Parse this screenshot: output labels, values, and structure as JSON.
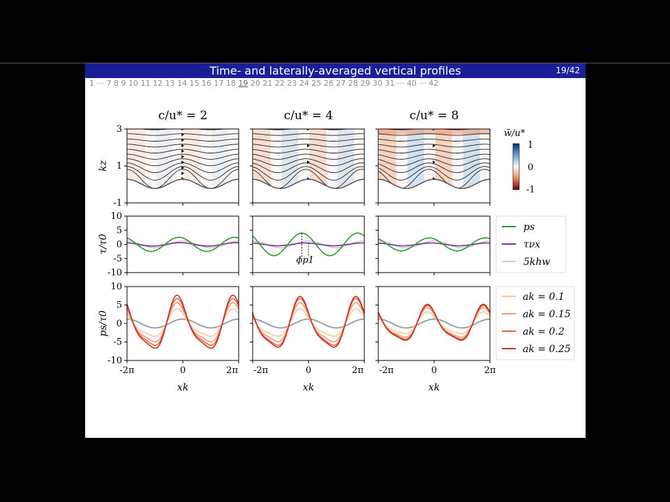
{
  "slide": {
    "title": "Time- and laterally-averaged vertical profiles",
    "page": "19/42",
    "nav": {
      "before": "1 ··· 7 8 9 10 11 12 13 14 15 16 17 18",
      "current": "19",
      "after": "20 21 22 23 24 25 26 27 28 29 30 31 ··· 40 ··· 42"
    }
  },
  "figure": {
    "column_titles": [
      "c/u* = 2",
      "c/u* = 4",
      "c/u* = 8"
    ],
    "colorbar": {
      "label": "w̄/u*",
      "ticks": [
        "1",
        "0",
        "-1"
      ],
      "colors": [
        "#08306b",
        "#ffffff",
        "#67000d"
      ]
    },
    "annotation": "ϕp1",
    "x_ticks": [
      "-2π",
      "0",
      "2π"
    ],
    "xlabel": "xk"
  },
  "chart_data": [
    {
      "type": "heatmap",
      "row": "streamlines",
      "ylabel": "kz",
      "y_ticks": [
        "3",
        "1",
        "-1"
      ],
      "ylim": [
        -1,
        3
      ],
      "xlim": [
        -6.283,
        6.283
      ],
      "panels": [
        "c/u* = 2",
        "c/u* = 4",
        "c/u* = 8"
      ],
      "wave_amplitude": 0.25
    },
    {
      "type": "line",
      "row": "stress",
      "ylabel": "τ/τ0",
      "y_ticks": [
        "10",
        "5",
        "0",
        "-5",
        "-10"
      ],
      "ylim": [
        -10,
        10
      ],
      "xlim": [
        -6.283,
        6.283
      ],
      "series": [
        {
          "name": "p_s",
          "label": "ps",
          "color": "#2e9a2e",
          "amplitude": [
            2.5,
            4.0,
            2.3
          ],
          "phase": [
            -0.45,
            -0.75,
            -0.55
          ]
        },
        {
          "name": "tau_vx",
          "label": "τνx",
          "color": "#7b2a8e",
          "amplitude": [
            0.6,
            0.5,
            0.5
          ],
          "phase": [
            -0.3,
            -0.3,
            -0.3
          ]
        },
        {
          "name": "5kh_w",
          "label": "5khw",
          "color": "#c8c8c8",
          "amplitude": [
            1.2,
            1.2,
            1.2
          ],
          "phase": [
            0,
            0,
            0
          ]
        }
      ]
    },
    {
      "type": "line",
      "row": "pressure",
      "ylabel": "ps/τ0",
      "y_ticks": [
        "10",
        "5",
        "0",
        "-5",
        "-10"
      ],
      "ylim": [
        -10,
        10
      ],
      "xlim": [
        -6.283,
        6.283
      ],
      "reference": {
        "color": "#999999",
        "amplitude": 1.2
      },
      "series": [
        {
          "name": "ak=0.1",
          "label": "ak = 0.1",
          "color": "#f6c79c",
          "amplitude": [
            3.5,
            3.5,
            2.8
          ]
        },
        {
          "name": "ak=0.15",
          "label": "ak = 0.15",
          "color": "#f09a72",
          "amplitude": [
            5.0,
            5.0,
            3.8
          ]
        },
        {
          "name": "ak=0.2",
          "label": "ak = 0.2",
          "color": "#e5603f",
          "amplitude": [
            6.0,
            6.0,
            4.3
          ]
        },
        {
          "name": "ak=0.25",
          "label": "ak = 0.25",
          "color": "#c6311f",
          "amplitude": [
            6.8,
            6.5,
            4.6
          ]
        }
      ],
      "phase": [
        -0.5,
        -0.8,
        -0.6
      ]
    }
  ]
}
